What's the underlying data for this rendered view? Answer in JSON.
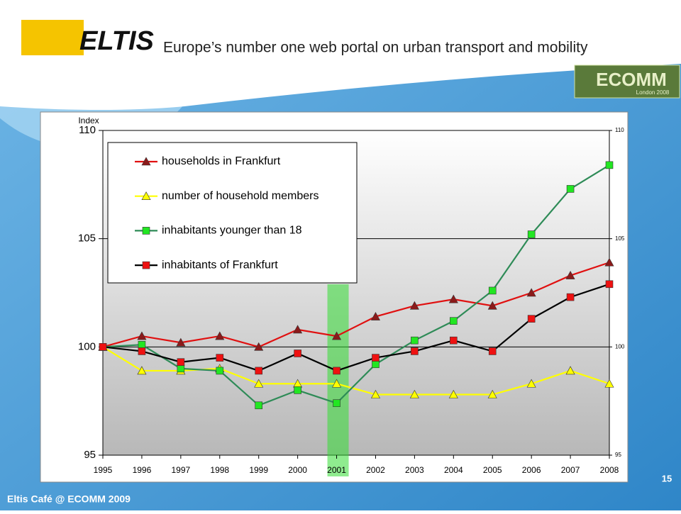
{
  "header": {
    "logo": "ELTIS",
    "tagline": "Europe’s number one web portal on urban transport and mobility"
  },
  "badge": {
    "name": "ECOMM",
    "subtitle": "London 2008"
  },
  "footer": {
    "text": "Eltis Café @ ECOMM 2009",
    "page": "15"
  },
  "chart_data": {
    "type": "line",
    "y_label": "Index",
    "categories": [
      "1995",
      "1996",
      "1997",
      "1998",
      "1999",
      "2000",
      "2001",
      "2002",
      "2003",
      "2004",
      "2005",
      "2006",
      "2007",
      "2008"
    ],
    "highlight": "2001",
    "ylim": [
      95,
      110
    ],
    "yticks": [
      95,
      100,
      105,
      110
    ],
    "y2lim": [
      95,
      110
    ],
    "y2ticks": [
      95,
      100,
      105,
      110
    ],
    "grid": true,
    "legend": "upper left",
    "series": [
      {
        "name": "households in Frankfurt",
        "color": "#e01010",
        "marker": "triangle",
        "marker_color": "#8b1a1a",
        "values": [
          100,
          100.5,
          100.2,
          100.5,
          100.0,
          100.8,
          100.5,
          101.4,
          101.9,
          102.2,
          101.9,
          102.5,
          103.3,
          103.9
        ]
      },
      {
        "name": "number of household members",
        "color": "#ffff00",
        "marker": "triangle",
        "marker_color": "#ffff00",
        "values": [
          100,
          98.9,
          98.9,
          99.0,
          98.3,
          98.3,
          98.3,
          97.8,
          97.8,
          97.8,
          97.8,
          98.3,
          98.9,
          98.3
        ]
      },
      {
        "name": "inhabitants younger than 18",
        "color": "#2e8b57",
        "marker": "square",
        "marker_color": "#22e622",
        "values": [
          100,
          100.1,
          99.0,
          98.9,
          97.3,
          98.0,
          97.4,
          99.2,
          100.3,
          101.2,
          102.6,
          105.2,
          107.3,
          108.4
        ]
      },
      {
        "name": "inhabitants of Frankfurt",
        "color": "#000000",
        "marker": "square",
        "marker_color": "#ee1111",
        "values": [
          100,
          99.8,
          99.3,
          99.5,
          98.9,
          99.7,
          98.9,
          99.5,
          99.8,
          100.3,
          99.8,
          101.3,
          102.3,
          102.9
        ]
      }
    ]
  }
}
